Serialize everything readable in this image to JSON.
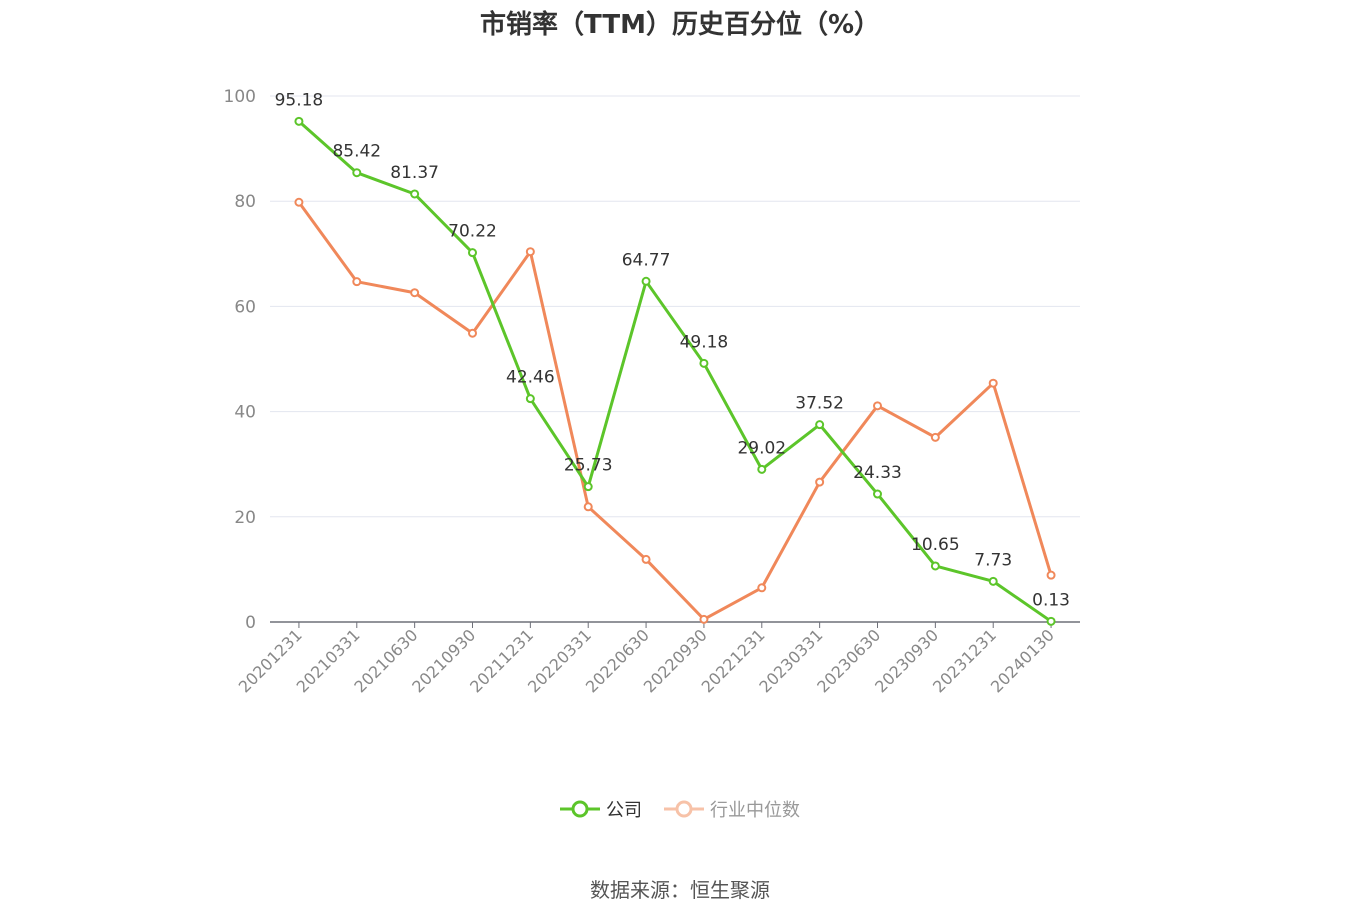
{
  "title": "市销率（TTM）历史百分位（%）",
  "source": "数据来源：恒生聚源",
  "colors": {
    "company": "#5cc52a",
    "industry": "#f0885a",
    "grid": "#e3e6ef",
    "axis": "#6e7079",
    "tick": "#888888"
  },
  "chart_data": {
    "type": "line",
    "categories": [
      "20201231",
      "20210331",
      "20210630",
      "20210930",
      "20211231",
      "20220331",
      "20220630",
      "20220930",
      "20221231",
      "20230331",
      "20230630",
      "20230930",
      "20231231",
      "20240130"
    ],
    "series": [
      {
        "name": "公司",
        "values": [
          95.18,
          85.42,
          81.37,
          70.22,
          42.46,
          25.73,
          64.77,
          49.18,
          29.02,
          37.52,
          24.33,
          10.65,
          7.73,
          0.13
        ],
        "data_labels": [
          "95.18",
          "85.42",
          "81.37",
          "70.22",
          "42.46",
          "25.73",
          "64.77",
          "49.18",
          "29.02",
          "37.52",
          "24.33",
          "10.65",
          "7.73",
          "0.13"
        ]
      },
      {
        "name": "行业中位数",
        "values": [
          79.8,
          64.7,
          62.6,
          54.9,
          70.4,
          21.9,
          11.9,
          0.5,
          6.5,
          26.6,
          41.1,
          35.1,
          45.4,
          8.9
        ]
      }
    ],
    "yticks": [
      "0",
      "20",
      "40",
      "60",
      "80",
      "100"
    ],
    "ylim": [
      0,
      100
    ],
    "grid": true,
    "legend_position": "bottom"
  }
}
